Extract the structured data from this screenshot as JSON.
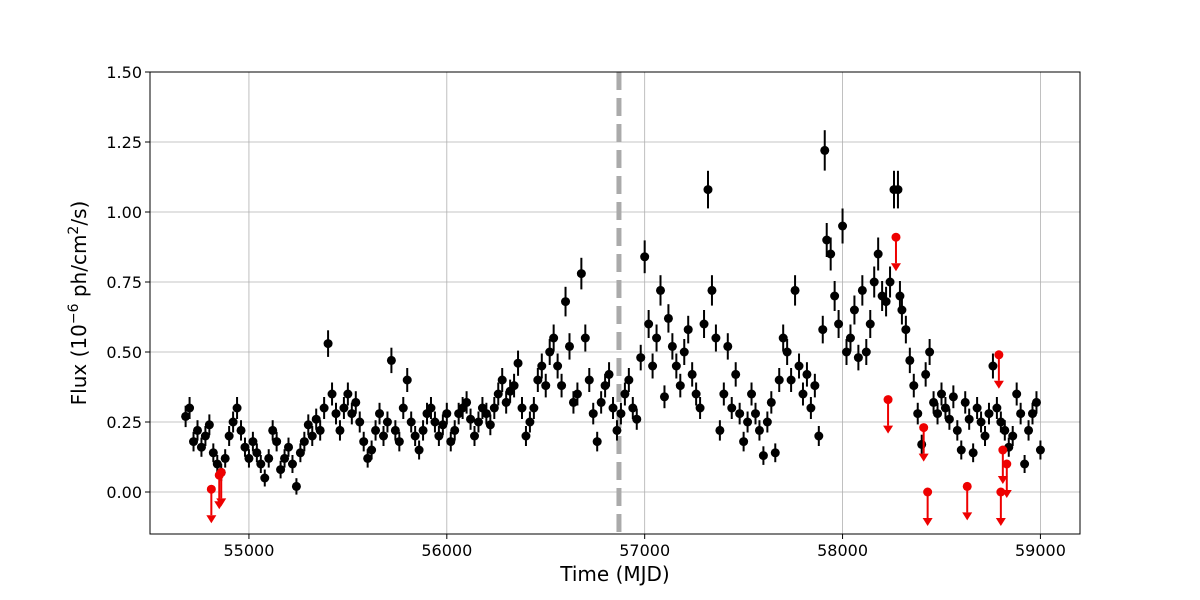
{
  "chart_data": {
    "type": "scatter",
    "xlabel": "Time (MJD)",
    "ylabel_parts": [
      "Flux (10",
      "−6",
      " ph/cm",
      "2",
      "/s)"
    ],
    "xlim": [
      54500,
      59200
    ],
    "ylim": [
      -0.15,
      1.5
    ],
    "xticks": [
      55000,
      56000,
      57000,
      58000,
      59000
    ],
    "yticks": [
      0.0,
      0.25,
      0.5,
      0.75,
      1.0,
      1.25,
      1.5
    ],
    "ytick_labels": [
      "0.00",
      "0.25",
      "0.50",
      "0.75",
      "1.00",
      "1.25",
      "1.50"
    ],
    "grid": true,
    "vline": {
      "x": 56870,
      "color": "#aaaaaa",
      "style": "dashed"
    },
    "colors": {
      "detections": "#000000",
      "upper_limits": "#ee0000",
      "grid": "#b0b0b0"
    },
    "series": [
      {
        "kind": "detections",
        "points": [
          [
            54680,
            0.27
          ],
          [
            54700,
            0.3
          ],
          [
            54720,
            0.18
          ],
          [
            54740,
            0.22
          ],
          [
            54760,
            0.16
          ],
          [
            54780,
            0.2
          ],
          [
            54800,
            0.24
          ],
          [
            54820,
            0.14
          ],
          [
            54840,
            0.1
          ],
          [
            54860,
            0.07
          ],
          [
            54880,
            0.12
          ],
          [
            54900,
            0.2
          ],
          [
            54920,
            0.25
          ],
          [
            54940,
            0.3
          ],
          [
            54960,
            0.22
          ],
          [
            54980,
            0.16
          ],
          [
            55000,
            0.12
          ],
          [
            55020,
            0.18
          ],
          [
            55040,
            0.14
          ],
          [
            55060,
            0.1
          ],
          [
            55080,
            0.05
          ],
          [
            55100,
            0.12
          ],
          [
            55120,
            0.22
          ],
          [
            55140,
            0.18
          ],
          [
            55160,
            0.08
          ],
          [
            55180,
            0.12
          ],
          [
            55200,
            0.16
          ],
          [
            55220,
            0.1
          ],
          [
            55240,
            0.02
          ],
          [
            55260,
            0.14
          ],
          [
            55280,
            0.18
          ],
          [
            55300,
            0.24
          ],
          [
            55320,
            0.2
          ],
          [
            55340,
            0.26
          ],
          [
            55360,
            0.22
          ],
          [
            55380,
            0.3
          ],
          [
            55400,
            0.53
          ],
          [
            55420,
            0.35
          ],
          [
            55440,
            0.28
          ],
          [
            55460,
            0.22
          ],
          [
            55480,
            0.3
          ],
          [
            55500,
            0.35
          ],
          [
            55520,
            0.28
          ],
          [
            55540,
            0.32
          ],
          [
            55560,
            0.25
          ],
          [
            55580,
            0.18
          ],
          [
            55600,
            0.12
          ],
          [
            55620,
            0.15
          ],
          [
            55640,
            0.22
          ],
          [
            55660,
            0.28
          ],
          [
            55680,
            0.2
          ],
          [
            55700,
            0.25
          ],
          [
            55720,
            0.47
          ],
          [
            55740,
            0.22
          ],
          [
            55760,
            0.18
          ],
          [
            55780,
            0.3
          ],
          [
            55800,
            0.4
          ],
          [
            55820,
            0.25
          ],
          [
            55840,
            0.2
          ],
          [
            55860,
            0.15
          ],
          [
            55880,
            0.22
          ],
          [
            55900,
            0.28
          ],
          [
            55920,
            0.3
          ],
          [
            55940,
            0.25
          ],
          [
            55960,
            0.2
          ],
          [
            55980,
            0.24
          ],
          [
            56000,
            0.28
          ],
          [
            56020,
            0.18
          ],
          [
            56040,
            0.22
          ],
          [
            56060,
            0.28
          ],
          [
            56080,
            0.3
          ],
          [
            56100,
            0.32
          ],
          [
            56120,
            0.26
          ],
          [
            56140,
            0.2
          ],
          [
            56160,
            0.25
          ],
          [
            56180,
            0.3
          ],
          [
            56200,
            0.28
          ],
          [
            56220,
            0.24
          ],
          [
            56240,
            0.3
          ],
          [
            56260,
            0.35
          ],
          [
            56280,
            0.4
          ],
          [
            56300,
            0.32
          ],
          [
            56320,
            0.36
          ],
          [
            56340,
            0.38
          ],
          [
            56360,
            0.46
          ],
          [
            56380,
            0.3
          ],
          [
            56400,
            0.2
          ],
          [
            56420,
            0.25
          ],
          [
            56440,
            0.3
          ],
          [
            56460,
            0.4
          ],
          [
            56480,
            0.45
          ],
          [
            56500,
            0.38
          ],
          [
            56520,
            0.5
          ],
          [
            56540,
            0.55
          ],
          [
            56560,
            0.45
          ],
          [
            56580,
            0.38
          ],
          [
            56600,
            0.68
          ],
          [
            56620,
            0.52
          ],
          [
            56640,
            0.32
          ],
          [
            56660,
            0.35
          ],
          [
            56680,
            0.78
          ],
          [
            56700,
            0.55
          ],
          [
            56720,
            0.4
          ],
          [
            56740,
            0.28
          ],
          [
            56760,
            0.18
          ],
          [
            56780,
            0.32
          ],
          [
            56800,
            0.38
          ],
          [
            56820,
            0.42
          ],
          [
            56840,
            0.3
          ],
          [
            56860,
            0.22
          ],
          [
            56880,
            0.28
          ],
          [
            56900,
            0.35
          ],
          [
            56920,
            0.4
          ],
          [
            56940,
            0.3
          ],
          [
            56960,
            0.26
          ],
          [
            56980,
            0.48
          ],
          [
            57000,
            0.84
          ],
          [
            57020,
            0.6
          ],
          [
            57040,
            0.45
          ],
          [
            57060,
            0.55
          ],
          [
            57080,
            0.72
          ],
          [
            57100,
            0.34
          ],
          [
            57120,
            0.62
          ],
          [
            57140,
            0.52
          ],
          [
            57160,
            0.45
          ],
          [
            57180,
            0.38
          ],
          [
            57200,
            0.5
          ],
          [
            57220,
            0.58
          ],
          [
            57240,
            0.42
          ],
          [
            57260,
            0.35
          ],
          [
            57280,
            0.3
          ],
          [
            57300,
            0.6
          ],
          [
            57320,
            1.08
          ],
          [
            57340,
            0.72
          ],
          [
            57360,
            0.55
          ],
          [
            57380,
            0.22
          ],
          [
            57400,
            0.35
          ],
          [
            57420,
            0.52
          ],
          [
            57440,
            0.3
          ],
          [
            57460,
            0.42
          ],
          [
            57480,
            0.28
          ],
          [
            57500,
            0.18
          ],
          [
            57520,
            0.25
          ],
          [
            57540,
            0.35
          ],
          [
            57560,
            0.28
          ],
          [
            57580,
            0.22
          ],
          [
            57600,
            0.13
          ],
          [
            57620,
            0.25
          ],
          [
            57640,
            0.32
          ],
          [
            57660,
            0.14
          ],
          [
            57680,
            0.4
          ],
          [
            57700,
            0.55
          ],
          [
            57720,
            0.5
          ],
          [
            57740,
            0.4
          ],
          [
            57760,
            0.72
          ],
          [
            57780,
            0.45
          ],
          [
            57800,
            0.35
          ],
          [
            57820,
            0.42
          ],
          [
            57840,
            0.3
          ],
          [
            57860,
            0.38
          ],
          [
            57880,
            0.2
          ],
          [
            57900,
            0.58
          ],
          [
            57910,
            1.22
          ],
          [
            57920,
            0.9
          ],
          [
            57940,
            0.85
          ],
          [
            57960,
            0.7
          ],
          [
            57980,
            0.6
          ],
          [
            58000,
            0.95
          ],
          [
            58020,
            0.5
          ],
          [
            58040,
            0.55
          ],
          [
            58060,
            0.65
          ],
          [
            58080,
            0.48
          ],
          [
            58100,
            0.72
          ],
          [
            58120,
            0.5
          ],
          [
            58140,
            0.6
          ],
          [
            58160,
            0.75
          ],
          [
            58180,
            0.85
          ],
          [
            58200,
            0.7
          ],
          [
            58220,
            0.68
          ],
          [
            58240,
            0.75
          ],
          [
            58260,
            1.08
          ],
          [
            58280,
            1.08
          ],
          [
            58290,
            0.7
          ],
          [
            58300,
            0.65
          ],
          [
            58320,
            0.58
          ],
          [
            58340,
            0.47
          ],
          [
            58360,
            0.38
          ],
          [
            58380,
            0.28
          ],
          [
            58400,
            0.17
          ],
          [
            58420,
            0.42
          ],
          [
            58440,
            0.5
          ],
          [
            58460,
            0.32
          ],
          [
            58480,
            0.28
          ],
          [
            58500,
            0.35
          ],
          [
            58520,
            0.3
          ],
          [
            58540,
            0.26
          ],
          [
            58560,
            0.34
          ],
          [
            58580,
            0.22
          ],
          [
            58600,
            0.15
          ],
          [
            58620,
            0.32
          ],
          [
            58640,
            0.26
          ],
          [
            58660,
            0.14
          ],
          [
            58680,
            0.3
          ],
          [
            58700,
            0.25
          ],
          [
            58720,
            0.2
          ],
          [
            58740,
            0.28
          ],
          [
            58760,
            0.45
          ],
          [
            58780,
            0.3
          ],
          [
            58800,
            0.25
          ],
          [
            58820,
            0.22
          ],
          [
            58840,
            0.16
          ],
          [
            58860,
            0.2
          ],
          [
            58880,
            0.35
          ],
          [
            58900,
            0.28
          ],
          [
            58920,
            0.1
          ],
          [
            58940,
            0.22
          ],
          [
            58960,
            0.28
          ],
          [
            58980,
            0.32
          ],
          [
            59000,
            0.15
          ]
        ]
      },
      {
        "kind": "upper_limits",
        "points": [
          [
            54810,
            0.01
          ],
          [
            54850,
            0.06
          ],
          [
            54860,
            0.07
          ],
          [
            58230,
            0.33
          ],
          [
            58270,
            0.91
          ],
          [
            58410,
            0.23
          ],
          [
            58430,
            0.0
          ],
          [
            58630,
            0.02
          ],
          [
            58790,
            0.49
          ],
          [
            58800,
            0.0
          ],
          [
            58810,
            0.15
          ],
          [
            58830,
            0.1
          ]
        ]
      }
    ]
  }
}
